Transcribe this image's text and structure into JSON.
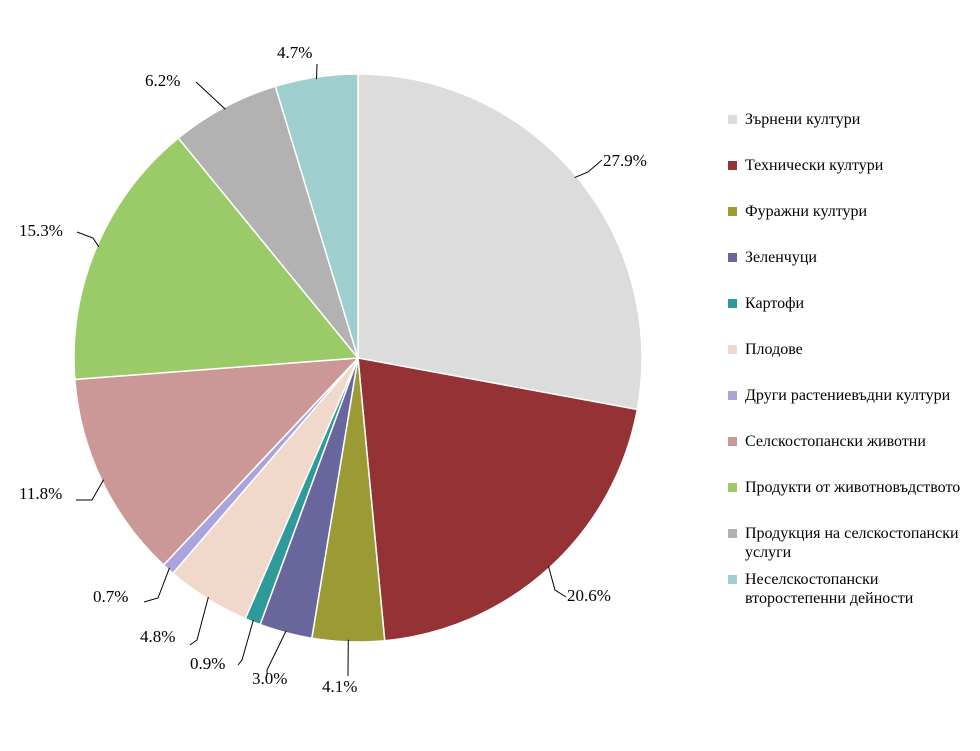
{
  "chart_data": {
    "type": "pie",
    "start_angle_deg": 0,
    "direction": "clockwise",
    "legend_position": "right",
    "slices": [
      {
        "label": "Зърнени култури",
        "value": 27.9,
        "value_label": "27.9%",
        "color": "#DCDCDC"
      },
      {
        "label": "Технически култури",
        "value": 20.6,
        "value_label": "20.6%",
        "color": "#953235"
      },
      {
        "label": "Фуражни култури",
        "value": 4.1,
        "value_label": "4.1%",
        "color": "#9B9A35"
      },
      {
        "label": "Зеленчуци",
        "value": 3.0,
        "value_label": "3.0%",
        "color": "#68669C"
      },
      {
        "label": "Картофи",
        "value": 0.9,
        "value_label": "0.9%",
        "color": "#2E9A99"
      },
      {
        "label": "Плодове",
        "value": 4.8,
        "value_label": "4.8%",
        "color": "#F0D8CB"
      },
      {
        "label": "Други растениевъдни култури",
        "value": 0.7,
        "value_label": "0.7%",
        "color": "#A9A5DC"
      },
      {
        "label": "Селскостопански животни",
        "value": 11.8,
        "value_label": "11.8%",
        "color": "#CC9897"
      },
      {
        "label": "Продукти от животновъдството",
        "value": 15.3,
        "value_label": "15.3%",
        "color": "#9BCB68"
      },
      {
        "label": "Продукция на селскостопански услуги",
        "value": 6.2,
        "value_label": "6.2%",
        "color": "#B2B2B2"
      },
      {
        "label": "Неселскостопански второстепенни дейности",
        "value": 4.7,
        "value_label": "4.7%",
        "color": "#9ECECE"
      }
    ]
  }
}
